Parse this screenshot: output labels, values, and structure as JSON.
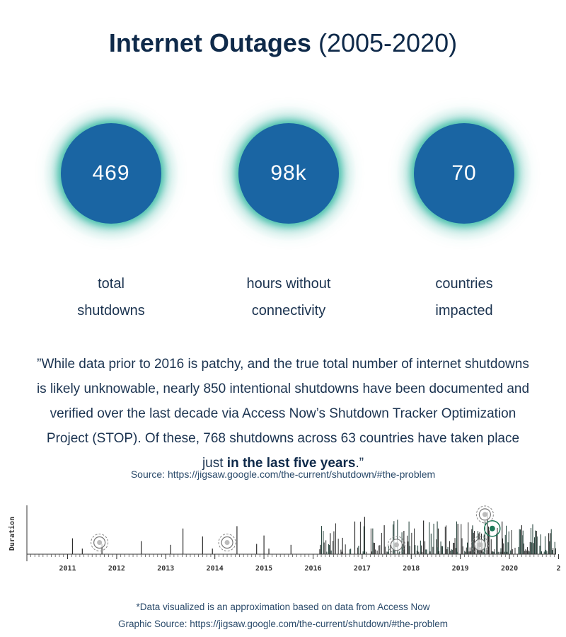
{
  "title": {
    "bold": "Internet Outages",
    "light": "(2005-2020)"
  },
  "stats": [
    {
      "value": "469",
      "label_line1": "total",
      "label_line2": "shutdowns"
    },
    {
      "value": "98k",
      "label_line1": "hours without",
      "label_line2": "connectivity"
    },
    {
      "value": "70",
      "label_line1": "countries",
      "label_line2": "impacted"
    }
  ],
  "quote": {
    "text": "”While data prior to 2016 is patchy, and the true total number of internet shutdowns is likely unknowable, nearly 850 intentional shutdowns have been documented and verified over the last decade via Access Now’s Shutdown Tracker Optimization Project (STOP). Of these, 768 shutdowns across 63 countries have taken place just ",
    "emphasis": "in the last five years",
    "end": ".”"
  },
  "source": "Source: https://jigsaw.google.com/the-current/shutdown/#the-problem",
  "chart_data": {
    "type": "bar",
    "ylabel": "Duration",
    "x_ticks": [
      "2011",
      "2012",
      "2013",
      "2014",
      "2015",
      "2016",
      "2017",
      "2018",
      "2019",
      "2020",
      "2"
    ],
    "events": [
      {
        "x": 2011.1,
        "y": 0.34
      },
      {
        "x": 2011.3,
        "y": 0.12
      },
      {
        "x": 2011.7,
        "y": 0.22
      },
      {
        "x": 2012.5,
        "y": 0.28
      },
      {
        "x": 2013.1,
        "y": 0.2
      },
      {
        "x": 2013.35,
        "y": 0.55
      },
      {
        "x": 2013.75,
        "y": 0.38
      },
      {
        "x": 2013.95,
        "y": 0.12
      },
      {
        "x": 2014.45,
        "y": 0.6
      },
      {
        "x": 2014.85,
        "y": 0.22
      },
      {
        "x": 2015.0,
        "y": 0.4
      },
      {
        "x": 2015.1,
        "y": 0.12
      },
      {
        "x": 2015.55,
        "y": 0.2
      },
      {
        "x": 2016.15,
        "y": 0.2
      },
      {
        "x": 2016.35,
        "y": 0.45
      },
      {
        "x": 2016.6,
        "y": 0.35
      },
      {
        "x": 2016.85,
        "y": 0.7
      },
      {
        "x": 2017.05,
        "y": 0.8
      },
      {
        "x": 2017.45,
        "y": 0.62
      },
      {
        "x": 2017.85,
        "y": 0.5
      },
      {
        "x": 2018.25,
        "y": 0.72
      },
      {
        "x": 2018.55,
        "y": 0.55
      },
      {
        "x": 2018.95,
        "y": 0.65
      },
      {
        "x": 2019.25,
        "y": 0.6
      },
      {
        "x": 2019.55,
        "y": 0.9
      },
      {
        "x": 2019.85,
        "y": 0.7
      },
      {
        "x": 2020.25,
        "y": 0.62
      },
      {
        "x": 2020.55,
        "y": 0.5
      },
      {
        "x": 2020.8,
        "y": 0.45
      }
    ],
    "markers": [
      {
        "x": 2011.65,
        "y": 0.25
      },
      {
        "x": 2014.25,
        "y": 0.25
      },
      {
        "x": 2017.7,
        "y": 0.2
      },
      {
        "x": 2019.4,
        "y": 0.2
      },
      {
        "x": 2019.65,
        "y": 0.55,
        "highlight": true
      },
      {
        "x": 2019.5,
        "y": 0.85
      }
    ],
    "x_range": [
      2010.2,
      2020.95
    ],
    "y_range": [
      0,
      1
    ],
    "colors": {
      "bar": "#2d2d2d",
      "dense_bar": "#1c3b33",
      "marker": "#888888",
      "highlight": "#1f7a5a"
    }
  },
  "footnote": {
    "line1": "*Data visualized is an approximation based on data from Access Now",
    "line2": "Graphic Source: https://jigsaw.google.com/the-current/shutdown/#the-problem"
  }
}
